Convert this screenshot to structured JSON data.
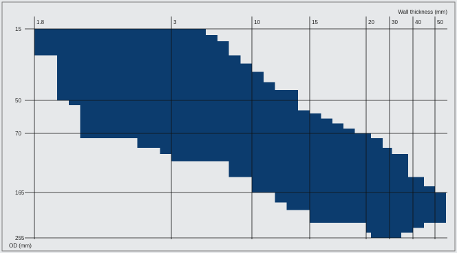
{
  "chart_data": {
    "type": "heatmap",
    "xlabel": "Wall thickness (mm)",
    "ylabel": "OD (mm)",
    "x_ticks": [
      "1.8",
      "3",
      "10",
      "15",
      "20",
      "30",
      "40",
      "50"
    ],
    "y_ticks": [
      "15",
      "50",
      "70",
      "165",
      "255"
    ],
    "series": [
      {
        "color": "#0c3c6e",
        "region": [
          {
            "od_from": 15,
            "od_to": 28,
            "wt_from": 1.8,
            "wt_to": 5
          },
          {
            "od_from": 15,
            "od_to": 18,
            "wt_from": 5,
            "wt_to": 6
          },
          {
            "od_from": 18,
            "od_to": 21,
            "wt_from": 5,
            "wt_to": 7
          },
          {
            "od_from": 21,
            "od_to": 28,
            "wt_from": 5,
            "wt_to": 8
          },
          {
            "od_from": 28,
            "od_to": 50,
            "wt_from": 2,
            "wt_to": 8
          },
          {
            "od_from": 28,
            "od_to": 32,
            "wt_from": 8,
            "wt_to": 9
          },
          {
            "od_from": 32,
            "od_to": 36,
            "wt_from": 8,
            "wt_to": 10
          },
          {
            "od_from": 36,
            "od_to": 41,
            "wt_from": 8,
            "wt_to": 11
          },
          {
            "od_from": 41,
            "od_to": 45,
            "wt_from": 8,
            "wt_to": 12
          },
          {
            "od_from": 45,
            "od_to": 50,
            "wt_from": 8,
            "wt_to": 14
          },
          {
            "od_from": 50,
            "od_to": 53,
            "wt_from": 2.1,
            "wt_to": 14
          },
          {
            "od_from": 53,
            "od_to": 56,
            "wt_from": 2.2,
            "wt_to": 14
          },
          {
            "od_from": 56,
            "od_to": 58,
            "wt_from": 2.2,
            "wt_to": 15
          },
          {
            "od_from": 58,
            "od_to": 61,
            "wt_from": 2.2,
            "wt_to": 16
          },
          {
            "od_from": 61,
            "od_to": 64,
            "wt_from": 2.2,
            "wt_to": 17
          },
          {
            "od_from": 64,
            "od_to": 67,
            "wt_from": 2.2,
            "wt_to": 18
          },
          {
            "od_from": 67,
            "od_to": 70,
            "wt_from": 2.2,
            "wt_to": 19
          },
          {
            "od_from": 70,
            "od_to": 78,
            "wt_from": 2.2,
            "wt_to": 22
          },
          {
            "od_from": 78,
            "od_to": 93,
            "wt_from": 2.7,
            "wt_to": 27
          },
          {
            "od_from": 93,
            "od_to": 103,
            "wt_from": 2.9,
            "wt_to": 31
          },
          {
            "od_from": 103,
            "od_to": 115,
            "wt_from": 3,
            "wt_to": 38
          },
          {
            "od_from": 115,
            "od_to": 140,
            "wt_from": 8,
            "wt_to": 38
          },
          {
            "od_from": 140,
            "od_to": 155,
            "wt_from": 10,
            "wt_to": 45
          },
          {
            "od_from": 155,
            "od_to": 165,
            "wt_from": 10,
            "wt_to": 50
          },
          {
            "od_from": 165,
            "od_to": 185,
            "wt_from": 12,
            "wt_to": 55
          },
          {
            "od_from": 185,
            "od_to": 200,
            "wt_from": 13,
            "wt_to": 55
          },
          {
            "od_from": 200,
            "od_to": 225,
            "wt_from": 15,
            "wt_to": 55
          },
          {
            "od_from": 225,
            "od_to": 235,
            "wt_from": 20,
            "wt_to": 45
          },
          {
            "od_from": 235,
            "od_to": 245,
            "wt_from": 20,
            "wt_to": 40
          },
          {
            "od_from": 245,
            "od_to": 255,
            "wt_from": 22,
            "wt_to": 35
          }
        ]
      }
    ]
  }
}
